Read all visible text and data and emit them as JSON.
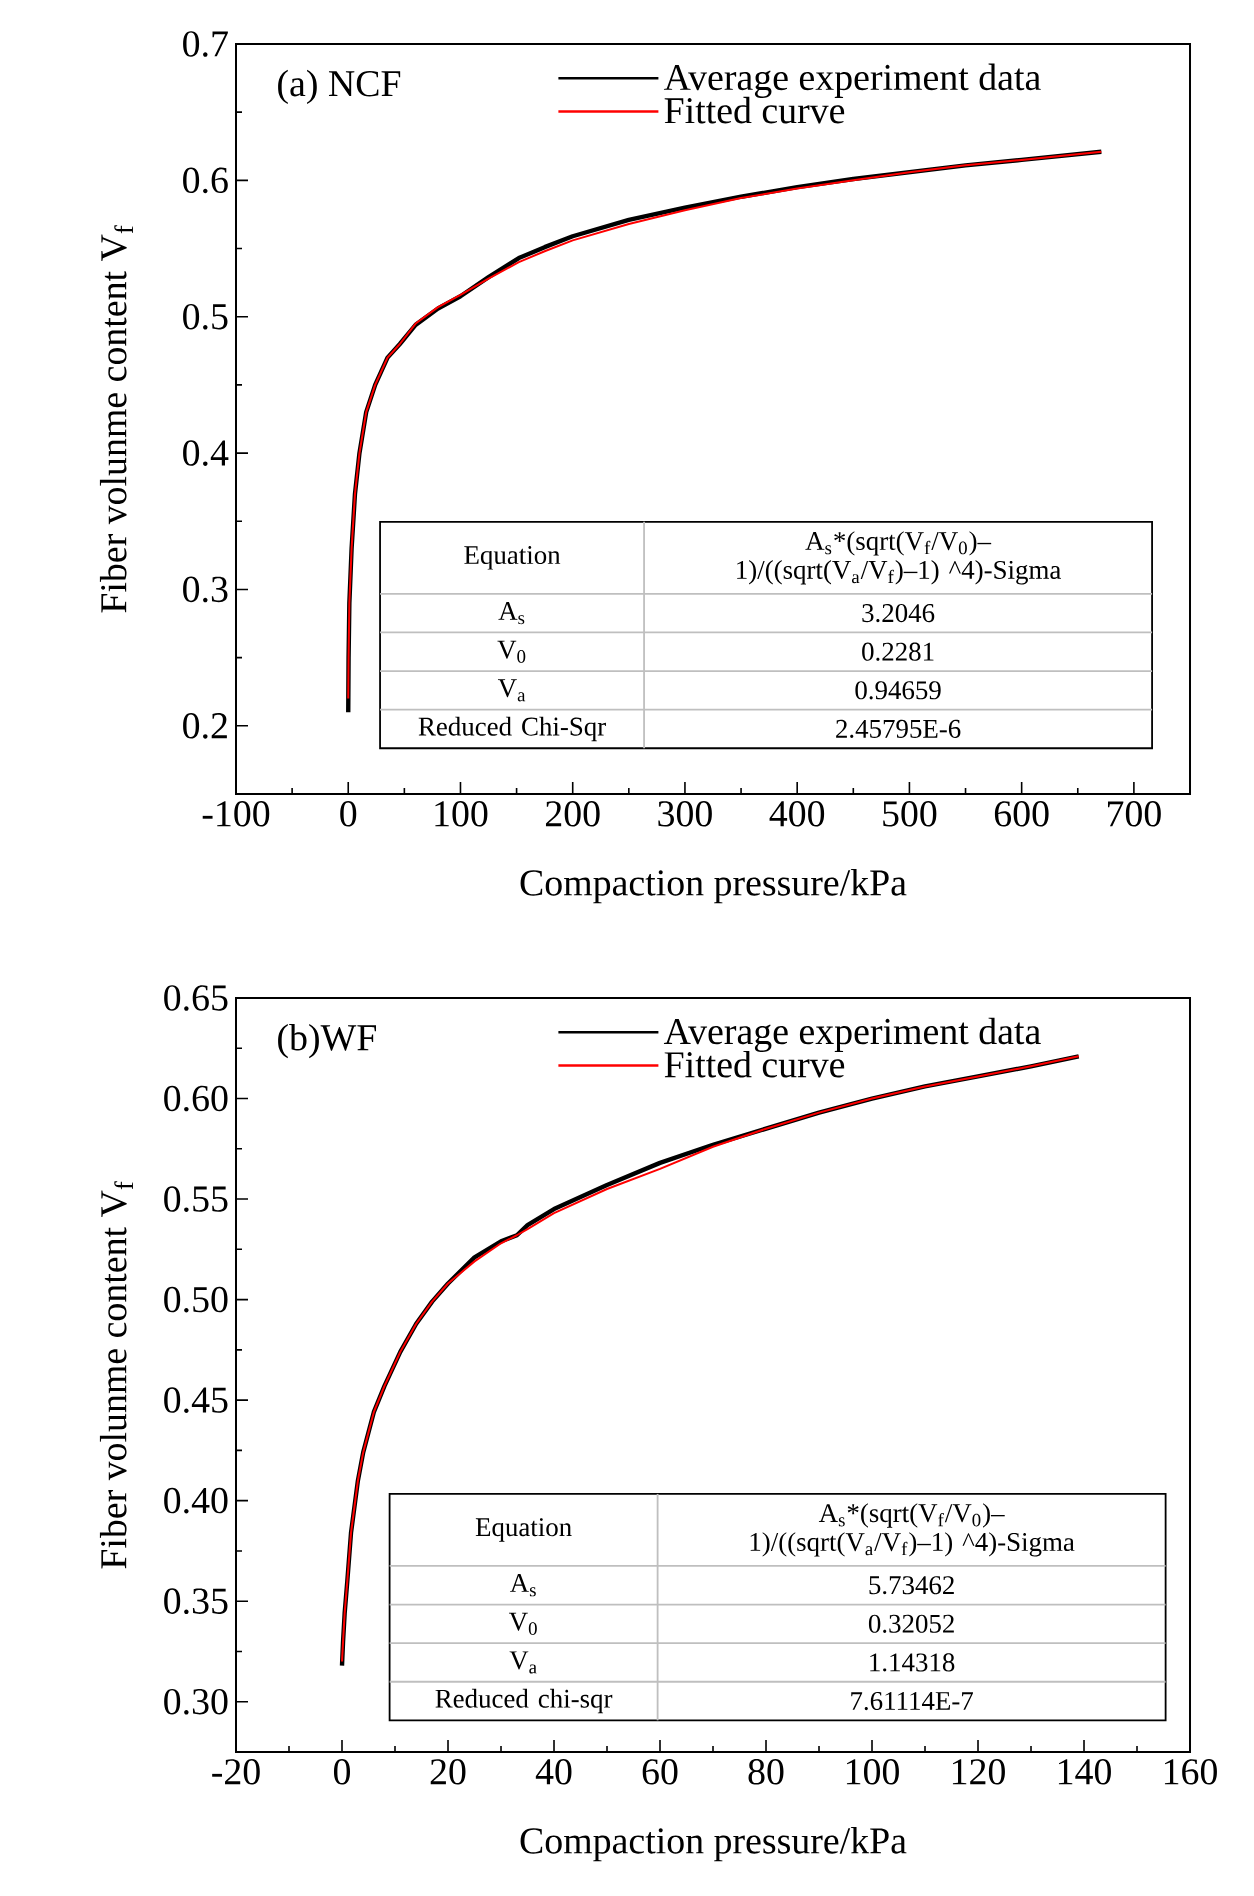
{
  "chart_data": [
    {
      "type": "line",
      "title": "(a) NCF",
      "xlabel": "Compaction pressure/kPa",
      "ylabel": "Fiber volunme content V$_{f}$",
      "xlim": [
        -100,
        750
      ],
      "ylim": [
        0.15,
        0.7
      ],
      "xticks": [
        -100,
        0,
        100,
        200,
        300,
        400,
        500,
        600,
        700
      ],
      "yticks": [
        0.2,
        0.3,
        0.4,
        0.5,
        0.6,
        0.7
      ],
      "legend": "top",
      "grid": false,
      "marker": "none",
      "line_style": "solid",
      "series": [
        {
          "name": "Average experiment data",
          "color": "#000000",
          "x": [
            0,
            0.3,
            1,
            3,
            6,
            10,
            16,
            24,
            35,
            46,
            60,
            80,
            100,
            125,
            152,
            175,
            200,
            250,
            300,
            350,
            400,
            450,
            500,
            550,
            600,
            671
          ],
          "values": [
            0.21,
            0.25,
            0.29,
            0.33,
            0.37,
            0.4,
            0.43,
            0.45,
            0.47,
            0.48,
            0.494,
            0.506,
            0.515,
            0.529,
            0.543,
            0.551,
            0.559,
            0.571,
            0.58,
            0.588,
            0.595,
            0.601,
            0.606,
            0.611,
            0.615,
            0.621
          ]
        },
        {
          "name": "Fitted curve",
          "color": "#ff0000",
          "x": [
            0,
            0.3,
            1,
            3,
            6,
            10,
            16,
            24,
            35,
            46,
            60,
            80,
            100,
            125,
            152,
            175,
            200,
            250,
            300,
            350,
            400,
            450,
            500,
            550,
            600,
            671
          ],
          "values": [
            0.22,
            0.25,
            0.29,
            0.33,
            0.37,
            0.4,
            0.43,
            0.45,
            0.47,
            0.48,
            0.495,
            0.507,
            0.516,
            0.528,
            0.54,
            0.548,
            0.556,
            0.568,
            0.578,
            0.587,
            0.594,
            0.6,
            0.606,
            0.611,
            0.615,
            0.621
          ]
        }
      ],
      "annotations": [
        "Equation",
        "A$_{s}$*(sqrt(V$_{f}$/V$_{0}$)–1)/((sqrt(V$_{a}$/V$_{f}$)–1) ^4)-Sigma",
        "A$_{s}$",
        "3.2046",
        "V$_{0}$",
        "0.2281",
        "V$_{a}$",
        "0.94659",
        "Reduced Chi-Sqr",
        "2.45795E-6"
      ]
    },
    {
      "type": "line",
      "title": "(b)WF",
      "xlabel": "Compaction pressure/kPa",
      "ylabel": "Fiber volunme content V$_{f}$",
      "xlim": [
        -20,
        160
      ],
      "ylim": [
        0.275,
        0.65
      ],
      "xticks": [
        -20,
        0,
        20,
        40,
        60,
        80,
        100,
        120,
        140,
        160
      ],
      "yticks": [
        {
          "value": 0.3,
          "label": "0.30"
        },
        {
          "value": 0.35,
          "label": "0.35"
        },
        {
          "value": 0.4,
          "label": "0.40"
        },
        {
          "value": 0.45,
          "label": "0.45"
        },
        {
          "value": 0.5,
          "label": "0.50"
        },
        {
          "value": 0.55,
          "label": "0.55"
        },
        {
          "value": 0.6,
          "label": "0.60"
        },
        {
          "value": 0.65,
          "label": "0.65"
        }
      ],
      "legend": "top",
      "grid": false,
      "marker": "none",
      "line_style": "solid",
      "series": [
        {
          "name": "Average experiment data",
          "color": "#000000",
          "x": [
            0,
            0.2,
            0.5,
            1,
            1.7,
            3,
            4,
            6,
            8,
            11,
            14,
            17,
            20,
            25,
            30,
            33,
            35,
            40,
            50,
            60,
            70,
            80,
            90,
            100,
            110,
            120,
            130,
            139
          ],
          "values": [
            0.318,
            0.33,
            0.344,
            0.36,
            0.384,
            0.41,
            0.424,
            0.444,
            0.457,
            0.474,
            0.488,
            0.499,
            0.508,
            0.521,
            0.529,
            0.532,
            0.537,
            0.545,
            0.557,
            0.568,
            0.577,
            0.585,
            0.593,
            0.6,
            0.606,
            0.611,
            0.616,
            0.621
          ]
        },
        {
          "name": "Fitted curve",
          "color": "#ff0000",
          "x": [
            0,
            0.2,
            0.5,
            1,
            1.7,
            3,
            4,
            6,
            8,
            11,
            14,
            17,
            20,
            25,
            30,
            33,
            35,
            40,
            50,
            60,
            70,
            80,
            90,
            100,
            110,
            120,
            130,
            139
          ],
          "values": [
            0.32,
            0.33,
            0.344,
            0.36,
            0.384,
            0.41,
            0.424,
            0.444,
            0.457,
            0.474,
            0.488,
            0.499,
            0.508,
            0.519,
            0.528,
            0.532,
            0.535,
            0.543,
            0.555,
            0.565,
            0.576,
            0.585,
            0.593,
            0.6,
            0.606,
            0.611,
            0.616,
            0.621
          ]
        }
      ],
      "annotations": [
        "Equation",
        "A$_{s}$*(sqrt(V$_{f}$/V$_{0}$)–1)/((sqrt(V$_{a}$/V$_{f}$)–1) ^4)-Sigma",
        "A$_{s}$",
        "5.73462",
        "V$_{0}$",
        "0.32052",
        "V$_{a}$",
        "1.14318",
        "Reduced chi-sqr",
        "7.61114E-7"
      ]
    }
  ]
}
